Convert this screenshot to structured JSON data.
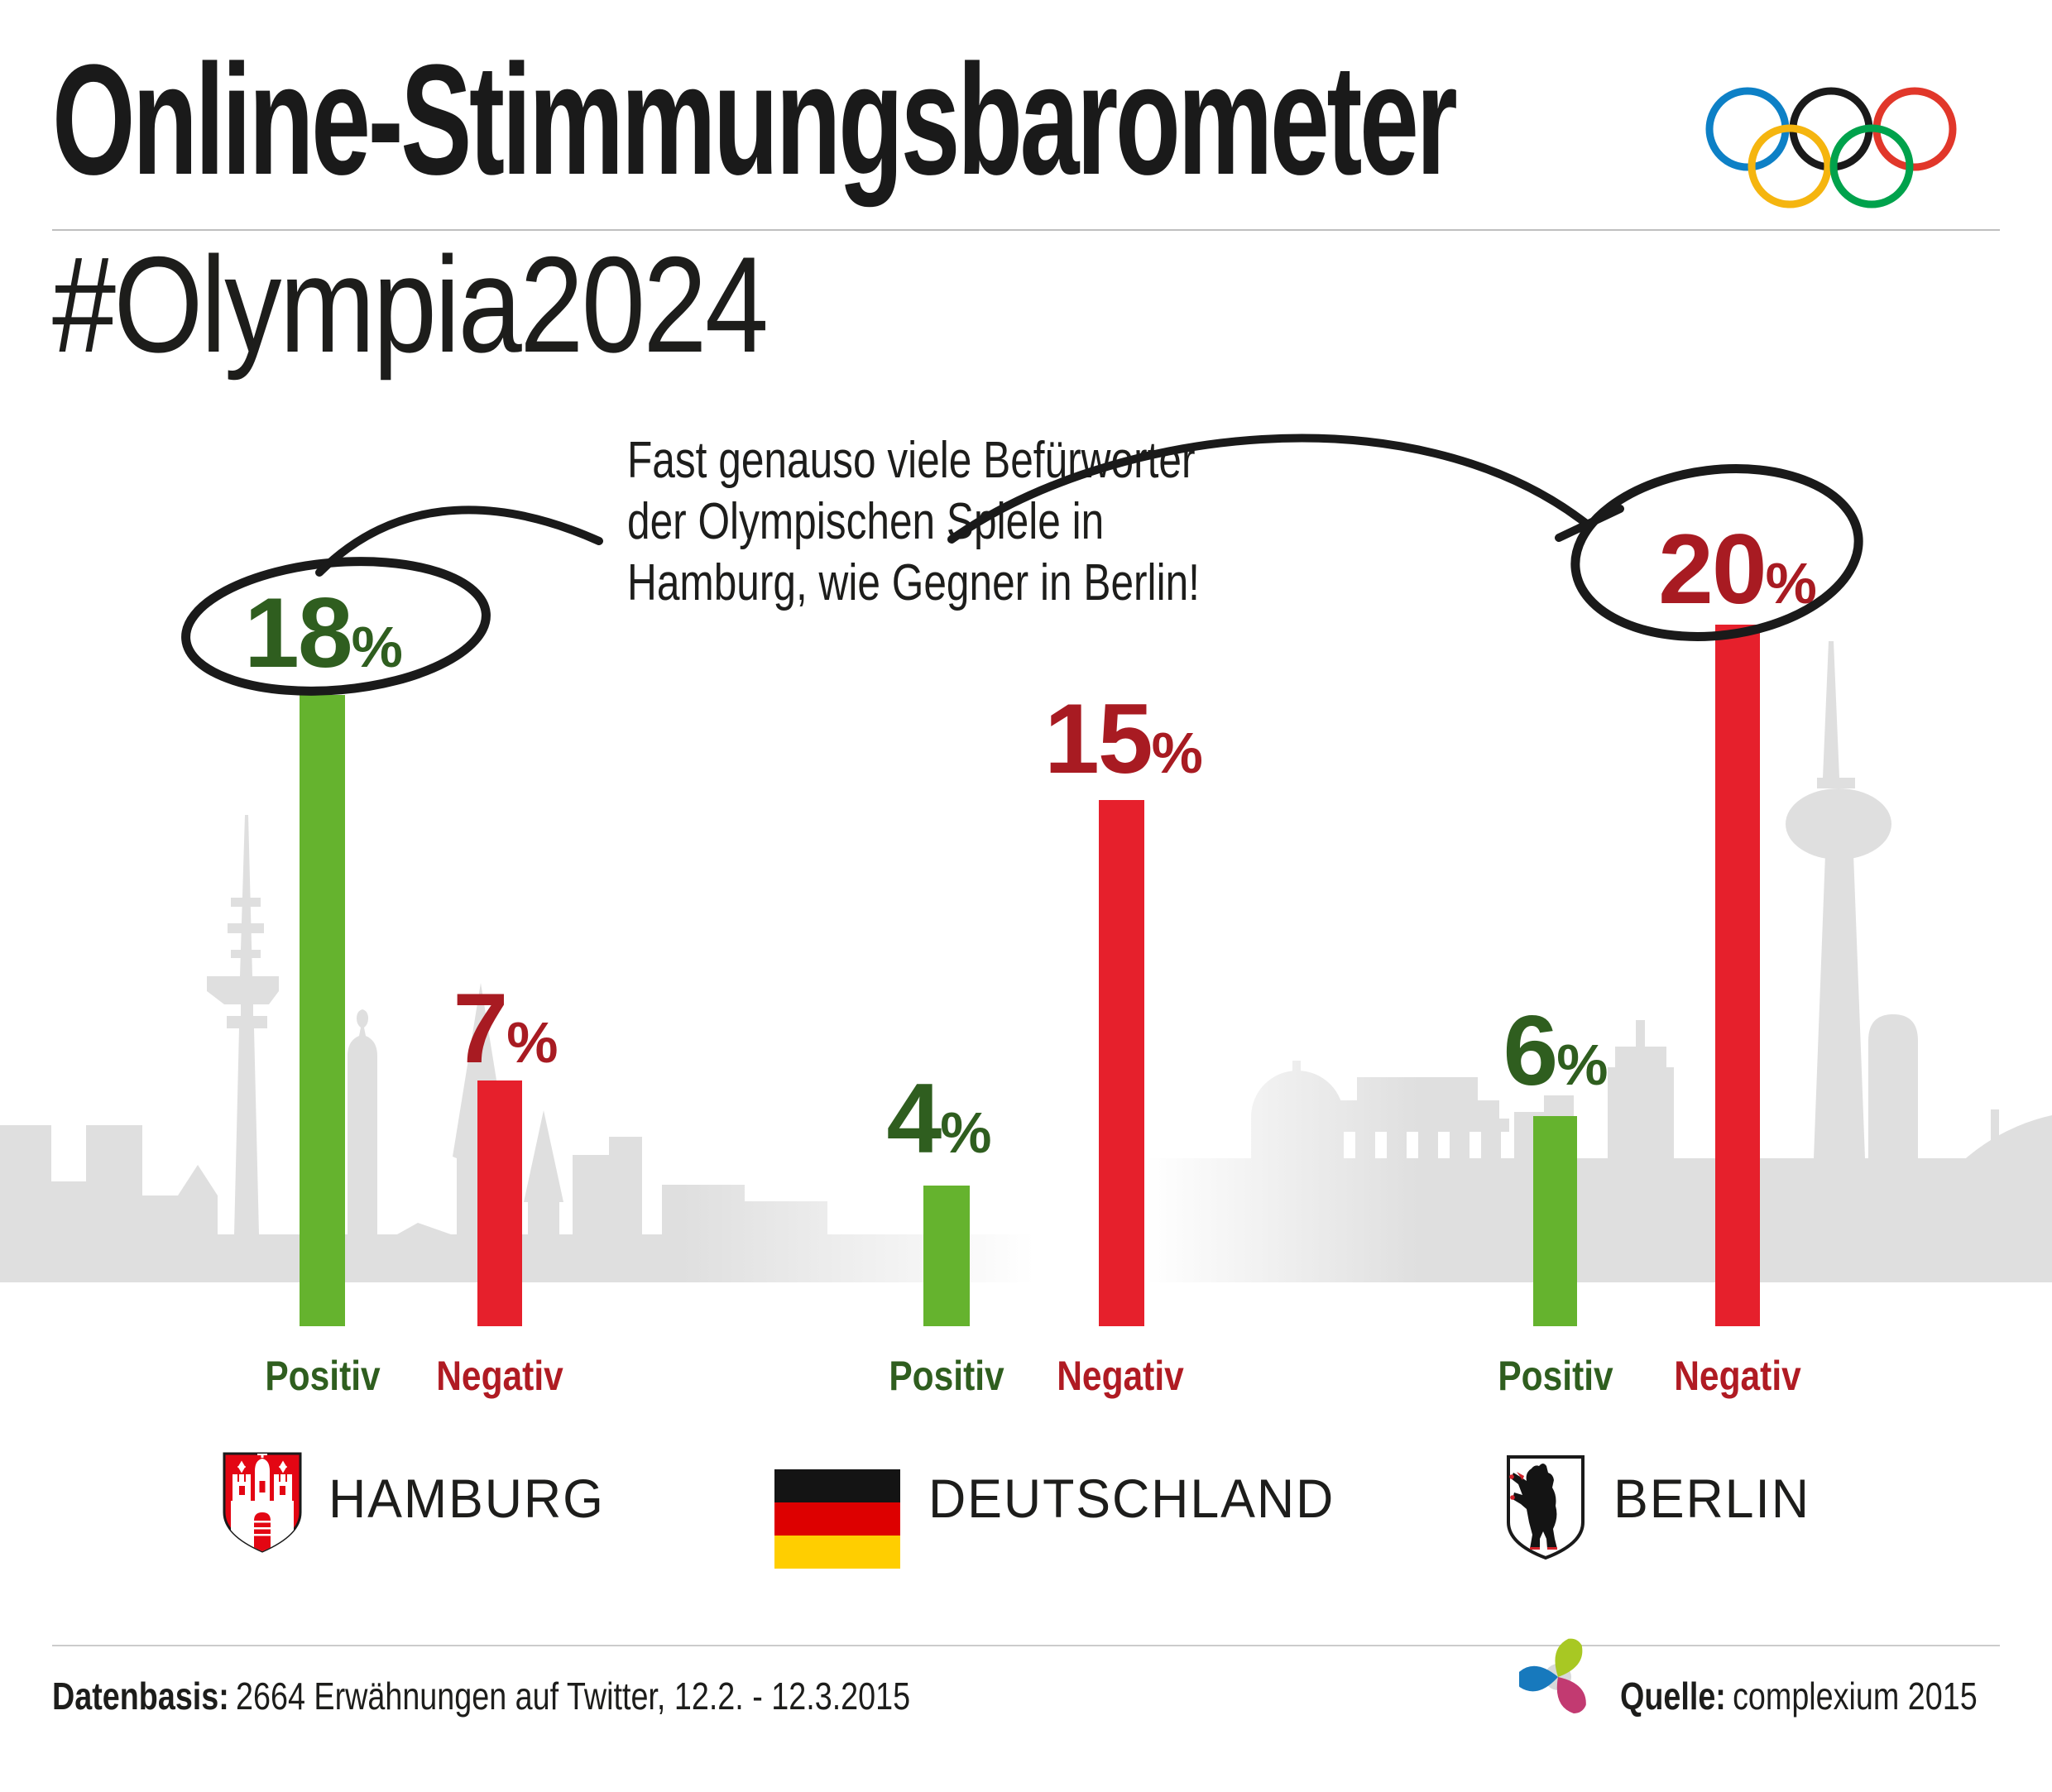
{
  "header": {
    "title": "Online-Stimmungsbarometer",
    "subtitle": "#Olympia2024"
  },
  "annotation": {
    "lines": [
      "Fast genauso viele Befürworter",
      "der Olympischen Spiele in",
      "Hamburg, wie Gegner in Berlin!"
    ]
  },
  "chart_data": {
    "type": "bar",
    "title": "Online-Stimmungsbarometer",
    "subtitle": "#Olympia2024",
    "unit": "%",
    "categories": [
      "Hamburg",
      "Deutschland",
      "Berlin"
    ],
    "series": [
      {
        "name": "Positiv",
        "color": "#65B32E",
        "label_color": "#2F5E1F",
        "values": [
          18,
          4,
          6
        ]
      },
      {
        "name": "Negativ",
        "color": "#E6202C",
        "label_color": "#A81B22",
        "values": [
          7,
          15,
          20
        ]
      }
    ],
    "ylim": [
      0,
      20
    ],
    "grid": false,
    "legend_position": "below-each-bar",
    "highlighted_values": [
      "18%",
      "20%"
    ],
    "annotation": "Fast genauso viele Befürworter der Olympischen Spiele in Hamburg, wie Gegner in Berlin!"
  },
  "cities": [
    {
      "label": "HAMBURG",
      "emblem": "hamburg-crest"
    },
    {
      "label": "DEUTSCHLAND",
      "emblem": "germany-flag"
    },
    {
      "label": "BERLIN",
      "emblem": "berlin-crest"
    }
  ],
  "footer": {
    "datenbasis_label": "Datenbasis:",
    "datenbasis_text": "2664 Erwähnungen auf Twitter, 12.2. - 12.3.2015",
    "quelle_label": "Quelle:",
    "quelle_text": "complexium 2015"
  },
  "colors": {
    "bar_positive": "#65B32E",
    "bar_negative": "#E6202C",
    "text_positive": "#2F5E1F",
    "text_negative": "#A81B22",
    "skyline_gray": "#DFDFDF",
    "doodle_black": "#1A1A1A",
    "olympic_rings": [
      "#0D80C6",
      "#1A1A1A",
      "#E1372A",
      "#F5B50F",
      "#00A24C"
    ],
    "logo": {
      "blue": "#1779BD",
      "green": "#A8C823",
      "magenta": "#C23A71",
      "gray": "#D8D9DA"
    }
  }
}
